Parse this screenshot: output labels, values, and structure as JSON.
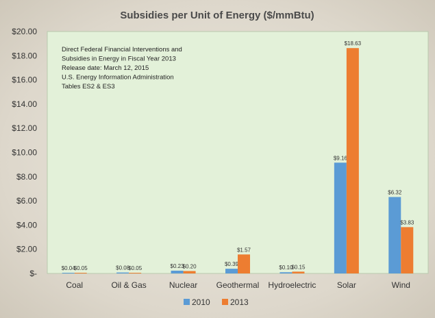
{
  "chart_data": {
    "type": "bar",
    "title": "Subsidies per Unit of Energy ($/mmBtu)",
    "categories": [
      "Coal",
      "Oil & Gas",
      "Nuclear",
      "Geothermal",
      "Hydroelectric",
      "Solar",
      "Wind"
    ],
    "series": [
      {
        "name": "2010",
        "color": "#5b9bd5",
        "values": [
          0.04,
          0.08,
          0.23,
          0.39,
          0.1,
          9.16,
          6.32
        ],
        "labels": [
          "$0.04",
          "$0.08",
          "$0.23",
          "$0.39",
          "$0.10",
          "$9.16",
          "$6.32"
        ]
      },
      {
        "name": "2013",
        "color": "#ed7d31",
        "values": [
          0.05,
          0.05,
          0.2,
          1.57,
          0.15,
          18.63,
          3.83
        ],
        "labels": [
          "$0.05",
          "$0.05",
          "$0.20",
          "$1.57",
          "$0.15",
          "$18.63",
          "$3.83"
        ]
      }
    ],
    "ylim": [
      0,
      20
    ],
    "yticks": [
      0,
      2,
      4,
      6,
      8,
      10,
      12,
      14,
      16,
      18,
      20
    ],
    "ytick_labels": [
      "$-",
      "$2.00",
      "$4.00",
      "$6.00",
      "$8.00",
      "$10.00",
      "$12.00",
      "$14.00",
      "$16.00",
      "$18.00",
      "$20.00"
    ],
    "xlabel": "",
    "ylabel": "",
    "grid": false,
    "legend_position": "bottom",
    "plot_background": "#e3f1d9",
    "annotation": [
      "Direct Federal Financial Interventions and",
      "Subsidies in Energy in Fiscal Year 2013",
      "Release date: March 12, 2015",
      "U.S. Energy Information  Administration",
      "Tables ES2 & ES3"
    ]
  }
}
